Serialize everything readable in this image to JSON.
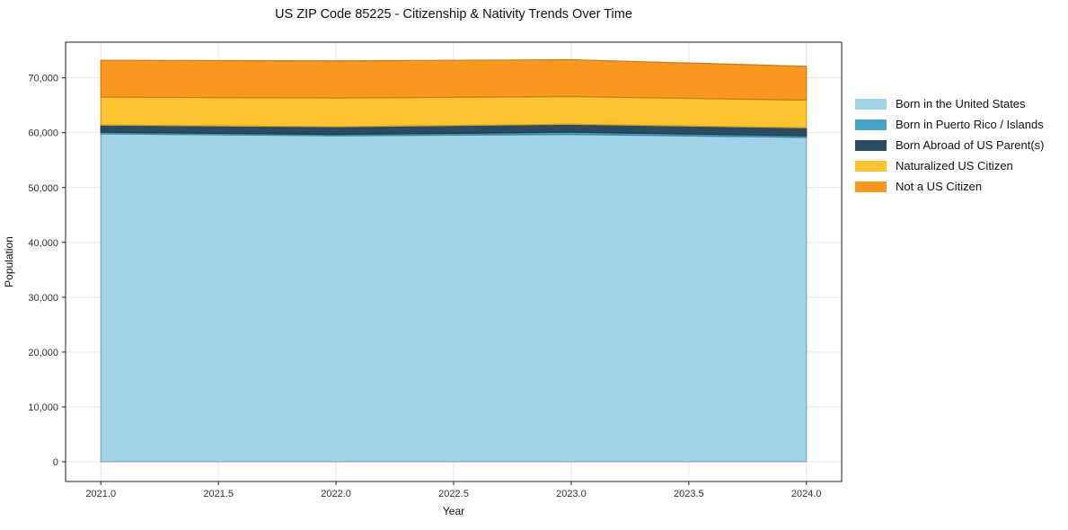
{
  "title": "US ZIP Code 85225 - Citizenship & Nativity Trends Over Time",
  "chart_data": {
    "type": "area",
    "stacked": true,
    "title": "US ZIP Code 85225 - Citizenship & Nativity Trends Over Time",
    "xlabel": "Year",
    "ylabel": "Population",
    "x": [
      2021,
      2022,
      2023,
      2024
    ],
    "series": [
      {
        "name": "Born in the United States",
        "color": "#a2d2e7",
        "values": [
          59800,
          59450,
          59700,
          59150
        ]
      },
      {
        "name": "Born in Puerto Rico / Islands",
        "color": "#46a5c5",
        "values": [
          300,
          250,
          400,
          300
        ]
      },
      {
        "name": "Born Abroad of US Parent(s)",
        "color": "#2b4b60",
        "values": [
          1300,
          1400,
          1450,
          1450
        ]
      },
      {
        "name": "Naturalized US Citizen",
        "color": "#fdc330",
        "values": [
          5100,
          5250,
          5050,
          5050
        ]
      },
      {
        "name": "Not a US Citizen",
        "color": "#f89820",
        "values": [
          6700,
          6750,
          6700,
          6150
        ]
      }
    ],
    "stack_totals": [
      73200,
      73100,
      73300,
      72100
    ],
    "x_ticks": [
      2021.0,
      2021.5,
      2022.0,
      2022.5,
      2023.0,
      2023.5,
      2024.0
    ],
    "x_tick_labels": [
      "2021.0",
      "2021.5",
      "2022.0",
      "2022.5",
      "2023.0",
      "2023.5",
      "2024.0"
    ],
    "y_ticks": [
      0,
      10000,
      20000,
      30000,
      40000,
      50000,
      60000,
      70000
    ],
    "y_tick_labels": [
      "0",
      "10,000",
      "20,000",
      "30,000",
      "40,000",
      "50,000",
      "60,000",
      "70,000"
    ],
    "xlim": [
      2020.85,
      2024.15
    ],
    "ylim": [
      -3600,
      76500
    ],
    "grid": true,
    "grid_color": "#e9e9e9",
    "spine_color": "#222222",
    "tick_label_color": "#333333",
    "legend_position": "right-outside"
  }
}
